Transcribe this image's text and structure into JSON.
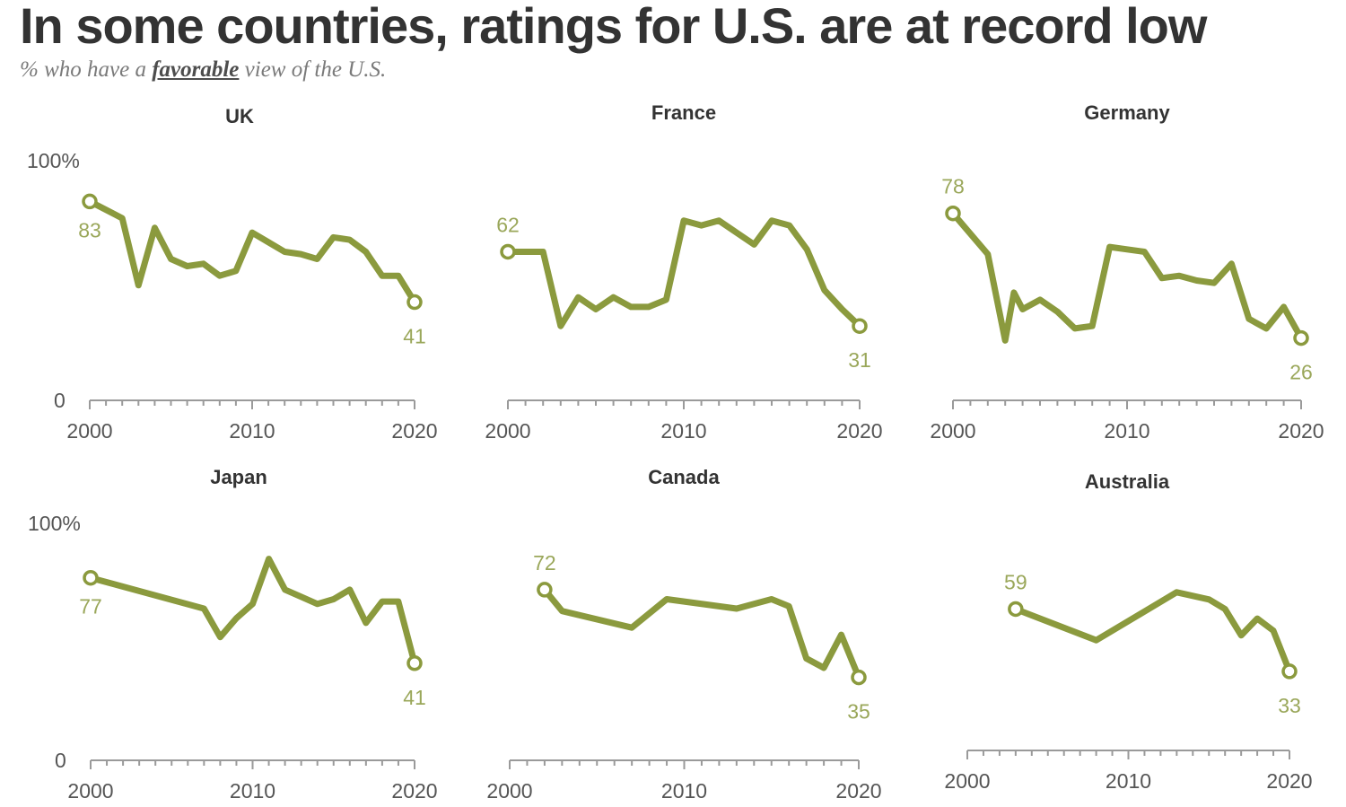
{
  "title": "In some countries, ratings for U.S. are at record low",
  "subtitle": {
    "before": "% who have a ",
    "emphasis": "favorable",
    "after": " view of the U.S."
  },
  "colors": {
    "line": "#8b9a3e",
    "label": "#9aa75a",
    "axis": "#9a9a9a",
    "text": "#333333"
  },
  "chart_data": [
    {
      "type": "line",
      "title": "UK",
      "ylim": [
        0,
        100
      ],
      "ytick_labels": [
        "100%",
        "0"
      ],
      "xlim": [
        2000,
        2020
      ],
      "xtick_labels": [
        "2000",
        "2010",
        "2020"
      ],
      "series": [
        {
          "x": [
            2000,
            2002,
            2003,
            2004,
            2005,
            2006,
            2007,
            2008,
            2009,
            2010,
            2011,
            2012,
            2013,
            2014,
            2015,
            2016,
            2017,
            2018,
            2019,
            2020
          ],
          "values": [
            83,
            76,
            48,
            72,
            59,
            56,
            57,
            52,
            54,
            70,
            66,
            62,
            61,
            59,
            68,
            67,
            62,
            52,
            52,
            41
          ]
        }
      ],
      "labels": [
        {
          "text": "83"
        },
        {
          "text": "41"
        }
      ]
    },
    {
      "type": "line",
      "title": "France",
      "ylim": [
        0,
        100
      ],
      "xlim": [
        2000,
        2020
      ],
      "xtick_labels": [
        "2000",
        "2010",
        "2020"
      ],
      "series": [
        {
          "x": [
            2000,
            2002,
            2003,
            2004,
            2005,
            2006,
            2007,
            2008,
            2009,
            2010,
            2011,
            2012,
            2013,
            2014,
            2015,
            2016,
            2017,
            2018,
            2019,
            2020
          ],
          "values": [
            62,
            62,
            31,
            43,
            38,
            43,
            39,
            39,
            42,
            75,
            73,
            75,
            70,
            65,
            75,
            73,
            63,
            46,
            38,
            31
          ]
        }
      ],
      "labels": [
        {
          "text": "62"
        },
        {
          "text": "31"
        }
      ]
    },
    {
      "type": "line",
      "title": "Germany",
      "ylim": [
        0,
        100
      ],
      "xlim": [
        2000,
        2020
      ],
      "xtick_labels": [
        "2000",
        "2010",
        "2020"
      ],
      "series": [
        {
          "x": [
            2000,
            2002,
            2003,
            2003.5,
            2004,
            2005,
            2006,
            2007,
            2008,
            2009,
            2010,
            2011,
            2012,
            2013,
            2014,
            2015,
            2016,
            2017,
            2018,
            2019,
            2020
          ],
          "values": [
            78,
            61,
            25,
            45,
            38,
            42,
            37,
            30,
            31,
            64,
            63,
            62,
            51,
            52,
            50,
            49,
            57,
            34,
            30,
            39,
            26
          ]
        }
      ],
      "labels": [
        {
          "text": "78"
        },
        {
          "text": "26"
        }
      ]
    },
    {
      "type": "line",
      "title": "Japan",
      "ylim": [
        0,
        100
      ],
      "ytick_labels": [
        "100%",
        "0"
      ],
      "xlim": [
        2000,
        2020
      ],
      "xtick_labels": [
        "2000",
        "2010",
        "2020"
      ],
      "series": [
        {
          "x": [
            2000,
            2007,
            2008,
            2009,
            2010,
            2011,
            2012,
            2013,
            2014,
            2015,
            2016,
            2017,
            2018,
            2019,
            2020
          ],
          "values": [
            77,
            64,
            52,
            60,
            66,
            85,
            72,
            69,
            66,
            68,
            72,
            58,
            67,
            67,
            41
          ]
        }
      ],
      "labels": [
        {
          "text": "77"
        },
        {
          "text": "41"
        }
      ]
    },
    {
      "type": "line",
      "title": "Canada",
      "ylim": [
        0,
        100
      ],
      "xlim": [
        2000,
        2020
      ],
      "xtick_labels": [
        "2000",
        "2010",
        "2020"
      ],
      "series": [
        {
          "x": [
            2002,
            2003,
            2007,
            2009,
            2013,
            2015,
            2016,
            2017,
            2018,
            2019,
            2020
          ],
          "values": [
            72,
            63,
            56,
            68,
            64,
            68,
            65,
            43,
            39,
            53,
            35
          ]
        }
      ],
      "labels": [
        {
          "text": "72"
        },
        {
          "text": "35"
        }
      ]
    },
    {
      "type": "line",
      "title": "Australia",
      "ylim": [
        0,
        100
      ],
      "xlim": [
        2000,
        2020
      ],
      "xtick_labels": [
        "2000",
        "2010",
        "2020"
      ],
      "series": [
        {
          "x": [
            2003,
            2008,
            2013,
            2015,
            2016,
            2017,
            2018,
            2019,
            2020
          ],
          "values": [
            59,
            46,
            66,
            63,
            59,
            48,
            55,
            50,
            33
          ]
        }
      ],
      "labels": [
        {
          "text": "59"
        },
        {
          "text": "33"
        }
      ]
    }
  ]
}
